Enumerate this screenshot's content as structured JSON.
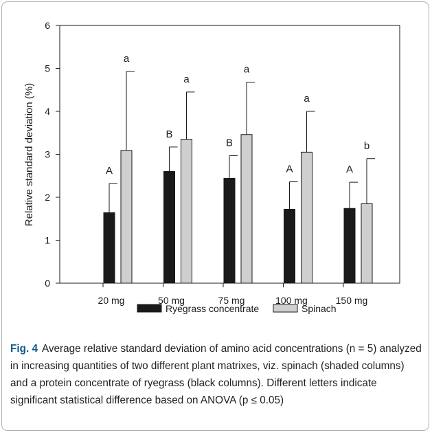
{
  "chart_data": {
    "type": "bar",
    "categories": [
      "20 mg",
      "50 mg",
      "75 mg",
      "100 mg",
      "150 mg"
    ],
    "series": [
      {
        "name": "Ryegrass concentrate",
        "color": "#1a1a1a",
        "values": [
          1.64,
          2.6,
          2.44,
          1.72,
          1.74
        ],
        "errors": [
          0.68,
          0.57,
          0.53,
          0.64,
          0.61
        ],
        "letters": [
          "A",
          "B",
          "B",
          "A",
          "A"
        ]
      },
      {
        "name": "Spinach",
        "color": "#cfcfcf",
        "values": [
          3.09,
          3.35,
          3.46,
          3.05,
          1.85
        ],
        "errors": [
          1.84,
          1.1,
          1.22,
          0.95,
          1.05
        ],
        "letters": [
          "a",
          "a",
          "a",
          "a",
          "b"
        ]
      }
    ],
    "ylabel": "Relative standard deviation (%)",
    "xlabel": "",
    "ylim": [
      0,
      6
    ],
    "yticks": [
      0,
      1,
      2,
      3,
      4,
      5,
      6
    ],
    "grid": false,
    "legend": "bottom"
  },
  "caption": {
    "label": "Fig. 4",
    "text": "Average relative standard deviation of amino acid concentrations (n = 5) analyzed in increasing quantities of two different plant matrixes, viz. spinach (shaded columns) and a protein concentrate of ryegrass (black columns). Different letters indicate significant statistical difference based on ANOVA (p ≤ 0.05)"
  }
}
